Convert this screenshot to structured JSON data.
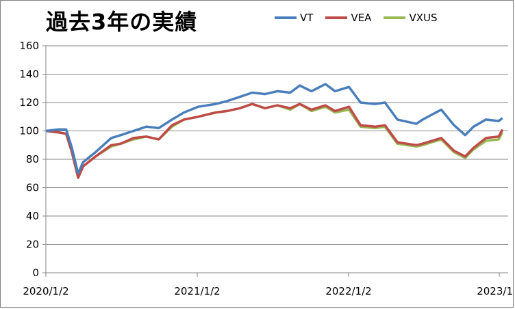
{
  "chart_data": {
    "type": "line",
    "title": "過去3年の実績",
    "xlabel": "",
    "ylabel": "",
    "ylim": [
      0,
      160
    ],
    "yticks": [
      "0",
      "20",
      "40",
      "60",
      "80",
      "100",
      "120",
      "140",
      "160"
    ],
    "xticks": [
      "2020/1/2",
      "2021/1/2",
      "2022/1/2",
      "2023/1"
    ],
    "grid": true,
    "legend_position": "top-right",
    "x": [
      "2020-01-02",
      "2020-02-01",
      "2020-02-20",
      "2020-03-05",
      "2020-03-20",
      "2020-04-01",
      "2020-05-01",
      "2020-06-08",
      "2020-07-01",
      "2020-08-01",
      "2020-09-01",
      "2020-10-01",
      "2020-11-02",
      "2020-12-01",
      "2021-01-04",
      "2021-02-16",
      "2021-03-15",
      "2021-04-15",
      "2021-05-15",
      "2021-06-15",
      "2021-07-15",
      "2021-08-15",
      "2021-09-07",
      "2021-10-05",
      "2021-11-08",
      "2021-12-01",
      "2022-01-04",
      "2022-02-01",
      "2022-03-08",
      "2022-04-01",
      "2022-05-01",
      "2022-06-16",
      "2022-07-01",
      "2022-08-15",
      "2022-09-15",
      "2022-10-12",
      "2022-11-01",
      "2022-12-01",
      "2023-01-01",
      "2023-01-10"
    ],
    "series": [
      {
        "name": "VT",
        "color": "#4a7ebb",
        "values": [
          100,
          101,
          101,
          88,
          70,
          78,
          85,
          95,
          97,
          100,
          103,
          102,
          108,
          113,
          117,
          119,
          121,
          124,
          127,
          126,
          128,
          127,
          132,
          128,
          133,
          128,
          131,
          120,
          119,
          120,
          108,
          105,
          108,
          115,
          104,
          97,
          103,
          108,
          107,
          109
        ]
      },
      {
        "name": "VEA",
        "color": "#be4b48",
        "values": [
          100,
          99,
          98,
          85,
          67,
          75,
          82,
          90,
          91,
          95,
          96,
          94,
          104,
          108,
          110,
          113,
          114,
          116,
          119,
          116,
          118,
          116,
          119,
          115,
          118,
          114,
          117,
          104,
          103,
          104,
          92,
          90,
          91,
          95,
          86,
          82,
          88,
          95,
          96,
          101
        ]
      },
      {
        "name": "VXUS",
        "color": "#98b954",
        "values": [
          100,
          99,
          98,
          85,
          67,
          75,
          82,
          89,
          91,
          94,
          96,
          94,
          103,
          108,
          110,
          113,
          114,
          116,
          119,
          116,
          118,
          115,
          119,
          114,
          117,
          113,
          115,
          103,
          102,
          103,
          91,
          89,
          90,
          94,
          85,
          81,
          87,
          93,
          94,
          99
        ]
      }
    ]
  }
}
